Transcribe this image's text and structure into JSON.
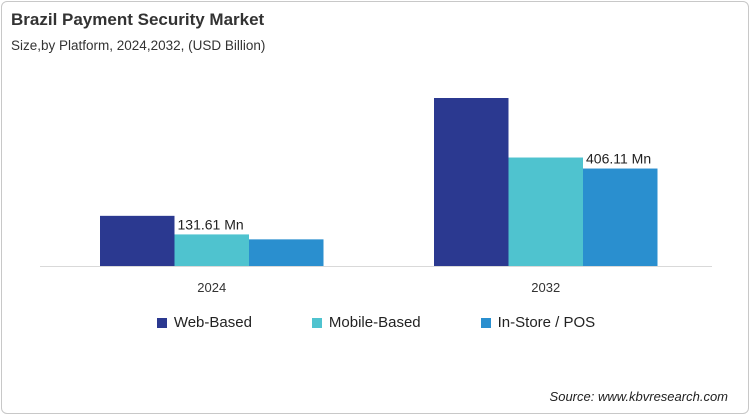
{
  "chart_data": {
    "type": "bar",
    "title": "Brazil Payment Security Market",
    "subtitle": "Size,by Platform, 2024,2032, (USD Billion)",
    "categories": [
      "2024",
      "2032"
    ],
    "series": [
      {
        "name": "Web-Based",
        "color": "#2b3990",
        "values": [
          209,
          700
        ]
      },
      {
        "name": "Mobile-Based",
        "color": "#4fc3cf",
        "values": [
          131.61,
          452
        ]
      },
      {
        "name": "In-Store / POS",
        "color": "#2a8fcf",
        "values": [
          111,
          406.11
        ]
      }
    ],
    "data_labels": [
      {
        "series": 1,
        "category": 0,
        "text": "131.61 Mn"
      },
      {
        "series": 2,
        "category": 1,
        "text": "406.11 Mn"
      }
    ],
    "ylim": [
      0,
      750
    ],
    "grid": false,
    "legend_position": "bottom",
    "source": "Source: www.kbvresearch.com"
  }
}
